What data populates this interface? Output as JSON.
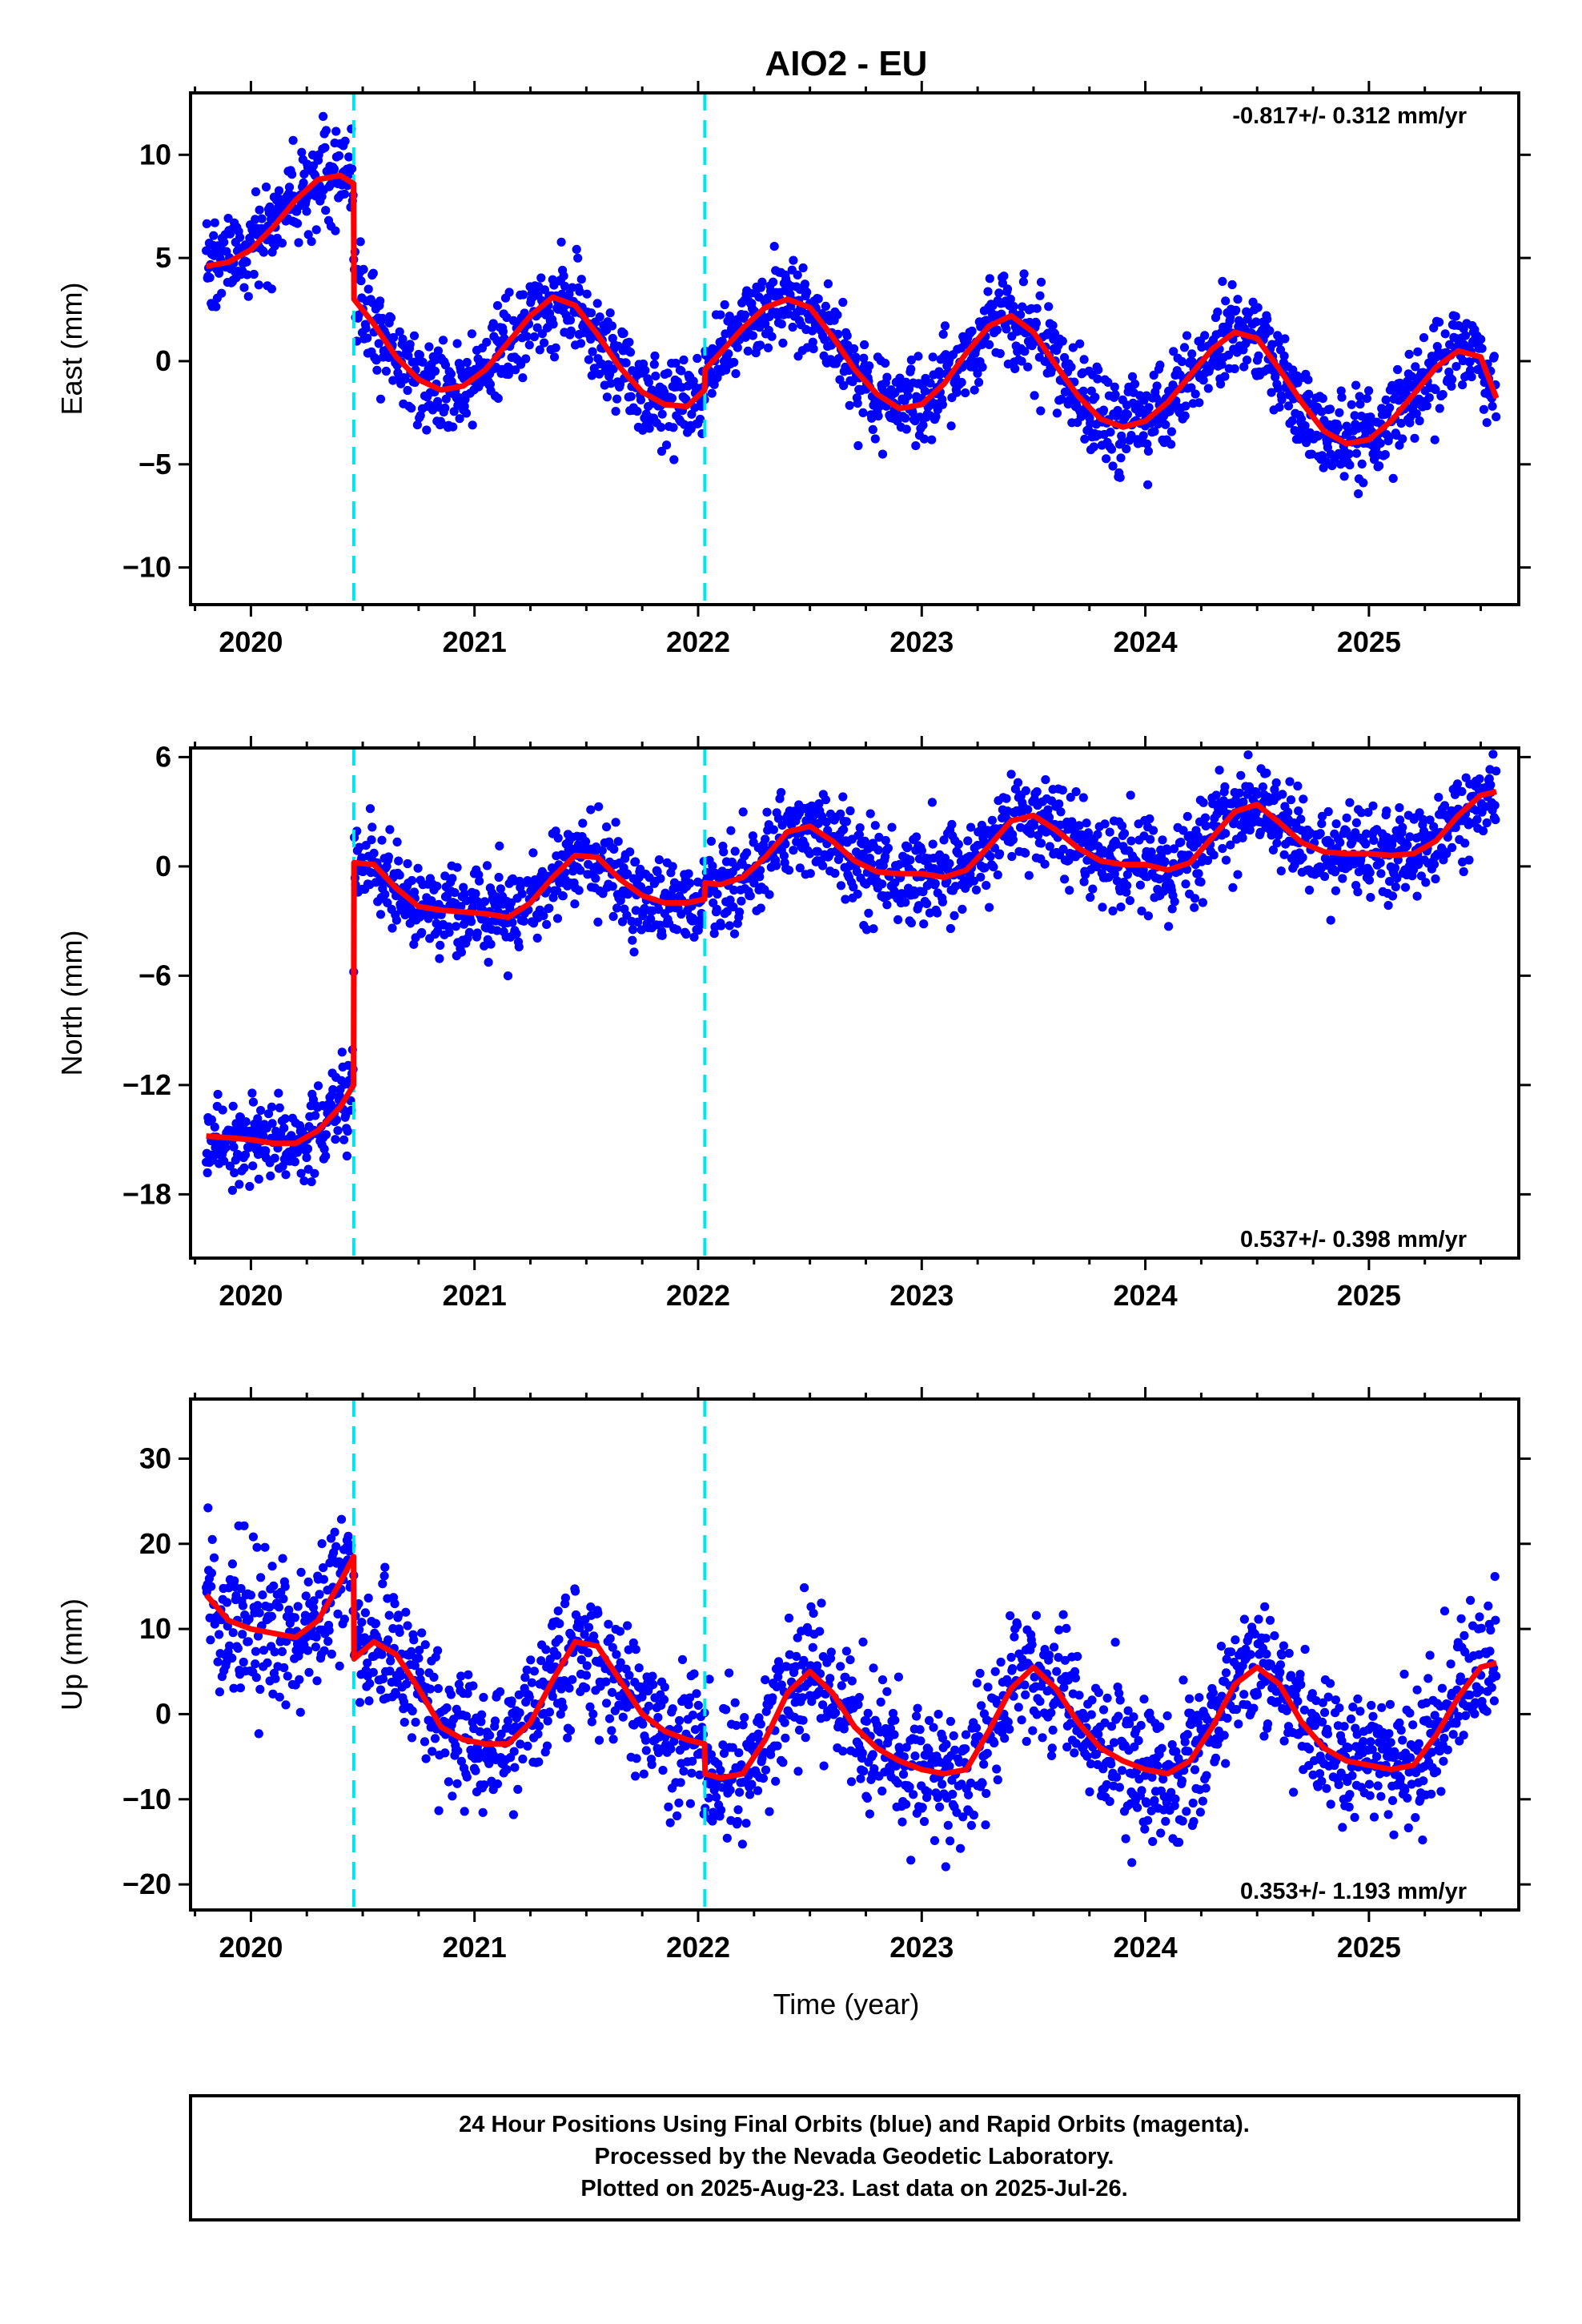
{
  "title": "AIO2 - EU",
  "x_label": "Time (year)",
  "footer": [
    "24 Hour Positions Using Final Orbits (blue) and Rapid Orbits (magenta).",
    "Processed by the Nevada Geodetic Laboratory.",
    "Plotted on 2025-Aug-23. Last data on 2025-Jul-26."
  ],
  "colors": {
    "data": "#0000ff",
    "model": "#ff0000",
    "step": "#00e5ee",
    "frame": "#000000"
  },
  "chart_data": [
    {
      "type": "scatter",
      "ylabel": "East (mm)",
      "rate": "-0.817+/- 0.312 mm/yr",
      "rate_position": "top-right",
      "xlim": [
        2019.73,
        2025.67
      ],
      "ylim": [
        -11.8,
        13.0
      ],
      "x_ticks": [
        2020,
        2021,
        2022,
        2023,
        2024,
        2025
      ],
      "y_ticks": [
        -10,
        -5,
        0,
        5,
        10
      ],
      "y_tick_labels": [
        "−10",
        "−5",
        "0",
        "5",
        "10"
      ],
      "steps": [
        2020.46,
        2022.03
      ],
      "data_range": [
        2019.8,
        2025.57
      ],
      "noise": 1.1,
      "model": {
        "type": "line",
        "x": [
          2019.8,
          2019.9,
          2020.0,
          2020.1,
          2020.2,
          2020.3,
          2020.4,
          2020.459,
          2020.461,
          2020.55,
          2020.65,
          2020.75,
          2020.85,
          2020.95,
          2021.05,
          2021.15,
          2021.25,
          2021.35,
          2021.45,
          2021.55,
          2021.65,
          2021.75,
          2021.85,
          2021.95,
          2022.029,
          2022.031,
          2022.1,
          2022.2,
          2022.3,
          2022.4,
          2022.5,
          2022.6,
          2022.7,
          2022.8,
          2022.9,
          2023.0,
          2023.1,
          2023.2,
          2023.3,
          2023.4,
          2023.5,
          2023.6,
          2023.7,
          2023.8,
          2023.9,
          2024.0,
          2024.1,
          2024.2,
          2024.3,
          2024.4,
          2024.5,
          2024.6,
          2024.7,
          2024.8,
          2024.9,
          2025.0,
          2025.1,
          2025.2,
          2025.3,
          2025.4,
          2025.5,
          2025.57
        ],
        "y": [
          4.6,
          4.8,
          5.4,
          6.5,
          7.8,
          8.8,
          9.0,
          8.6,
          3.0,
          1.8,
          0.2,
          -0.9,
          -1.4,
          -1.2,
          -0.4,
          0.9,
          2.2,
          3.1,
          2.7,
          1.3,
          -0.3,
          -1.5,
          -2.1,
          -2.2,
          -1.4,
          -0.4,
          0.4,
          1.6,
          2.6,
          3.0,
          2.6,
          1.2,
          -0.4,
          -1.6,
          -2.3,
          -2.1,
          -1.1,
          0.4,
          1.7,
          2.2,
          1.4,
          -0.2,
          -1.7,
          -2.8,
          -3.2,
          -2.9,
          -2.0,
          -0.7,
          0.6,
          1.4,
          1.1,
          -0.4,
          -2.0,
          -3.4,
          -4.0,
          -3.8,
          -2.9,
          -1.6,
          -0.3,
          0.5,
          0.2,
          -1.8
        ]
      }
    },
    {
      "type": "scatter",
      "ylabel": "North (mm)",
      "rate": "0.537+/- 0.398 mm/yr",
      "rate_position": "bottom-right",
      "xlim": [
        2019.73,
        2025.67
      ],
      "ylim": [
        -21.5,
        6.5
      ],
      "x_ticks": [
        2020,
        2021,
        2022,
        2023,
        2024,
        2025
      ],
      "y_ticks": [
        -18,
        -12,
        -6,
        0,
        6
      ],
      "y_tick_labels": [
        "−18",
        "−12",
        "−6",
        "0",
        "6"
      ],
      "steps": [
        2020.46,
        2022.03
      ],
      "data_range": [
        2019.8,
        2025.57
      ],
      "noise": 1.2,
      "model": {
        "type": "line",
        "x": [
          2019.8,
          2019.9,
          2020.0,
          2020.1,
          2020.2,
          2020.3,
          2020.4,
          2020.459,
          2020.461,
          2020.55,
          2020.65,
          2020.75,
          2020.85,
          2020.95,
          2021.05,
          2021.15,
          2021.25,
          2021.35,
          2021.45,
          2021.55,
          2021.65,
          2021.75,
          2021.85,
          2021.95,
          2022.029,
          2022.031,
          2022.1,
          2022.2,
          2022.3,
          2022.4,
          2022.5,
          2022.6,
          2022.7,
          2022.8,
          2022.9,
          2023.0,
          2023.1,
          2023.2,
          2023.3,
          2023.4,
          2023.5,
          2023.6,
          2023.7,
          2023.8,
          2023.9,
          2024.0,
          2024.1,
          2024.2,
          2024.3,
          2024.4,
          2024.5,
          2024.6,
          2024.7,
          2024.8,
          2024.9,
          2025.0,
          2025.1,
          2025.2,
          2025.3,
          2025.4,
          2025.5,
          2025.57
        ],
        "y": [
          -14.8,
          -14.9,
          -15.0,
          -15.2,
          -15.2,
          -14.5,
          -13.2,
          -12.0,
          0.2,
          0.1,
          -1.2,
          -2.2,
          -2.4,
          -2.5,
          -2.6,
          -2.8,
          -2.0,
          -0.6,
          0.6,
          0.5,
          -0.7,
          -1.6,
          -2.0,
          -2.0,
          -1.8,
          -0.9,
          -1.0,
          -0.6,
          0.5,
          1.9,
          2.2,
          1.4,
          0.3,
          -0.3,
          -0.4,
          -0.4,
          -0.6,
          -0.2,
          1.1,
          2.5,
          2.8,
          2.0,
          1.0,
          0.3,
          0.1,
          0.1,
          -0.2,
          0.2,
          1.6,
          3.0,
          3.4,
          2.4,
          1.3,
          0.8,
          0.7,
          0.7,
          0.6,
          0.7,
          1.4,
          2.8,
          3.9,
          4.1
        ]
      }
    },
    {
      "type": "scatter",
      "ylabel": "Up (mm)",
      "rate": "0.353+/- 1.193 mm/yr",
      "rate_position": "bottom-right",
      "xlim": [
        2019.73,
        2025.67
      ],
      "ylim": [
        -23.0,
        37.0
      ],
      "x_ticks": [
        2020,
        2021,
        2022,
        2023,
        2024,
        2025
      ],
      "y_ticks": [
        -20,
        -10,
        0,
        10,
        20,
        30
      ],
      "y_tick_labels": [
        "−20",
        "−10",
        "0",
        "10",
        "20",
        "30"
      ],
      "steps": [
        2020.46,
        2022.03
      ],
      "data_range": [
        2019.8,
        2025.57
      ],
      "noise": 4.0,
      "model": {
        "type": "line",
        "x": [
          2019.8,
          2019.9,
          2020.0,
          2020.1,
          2020.2,
          2020.3,
          2020.4,
          2020.459,
          2020.461,
          2020.55,
          2020.65,
          2020.75,
          2020.85,
          2020.95,
          2021.05,
          2021.15,
          2021.25,
          2021.35,
          2021.45,
          2021.55,
          2021.65,
          2021.75,
          2021.85,
          2021.95,
          2022.029,
          2022.031,
          2022.1,
          2022.2,
          2022.3,
          2022.4,
          2022.5,
          2022.6,
          2022.7,
          2022.8,
          2022.9,
          2023.0,
          2023.1,
          2023.2,
          2023.3,
          2023.4,
          2023.5,
          2023.6,
          2023.7,
          2023.8,
          2023.9,
          2024.0,
          2024.1,
          2024.2,
          2024.3,
          2024.4,
          2024.5,
          2024.6,
          2024.7,
          2024.8,
          2024.9,
          2025.0,
          2025.1,
          2025.2,
          2025.3,
          2025.4,
          2025.5,
          2025.57
        ],
        "y": [
          14.0,
          11.0,
          10.0,
          9.5,
          9.0,
          11.0,
          15.5,
          18.5,
          6.5,
          8.5,
          7.0,
          3.0,
          -1.5,
          -3.0,
          -3.5,
          -3.5,
          -1.0,
          4.0,
          8.5,
          8.0,
          4.0,
          0.0,
          -2.0,
          -3.0,
          -3.5,
          -7.0,
          -7.5,
          -7.0,
          -3.0,
          2.5,
          5.0,
          2.5,
          -1.5,
          -4.0,
          -5.5,
          -6.5,
          -7.0,
          -6.5,
          -2.0,
          3.0,
          5.5,
          3.0,
          -1.0,
          -4.0,
          -5.5,
          -6.5,
          -7.0,
          -5.5,
          -1.5,
          3.5,
          5.5,
          3.5,
          -1.0,
          -4.0,
          -5.5,
          -6.0,
          -6.5,
          -6.0,
          -2.5,
          2.0,
          5.5,
          6.0
        ]
      }
    }
  ]
}
